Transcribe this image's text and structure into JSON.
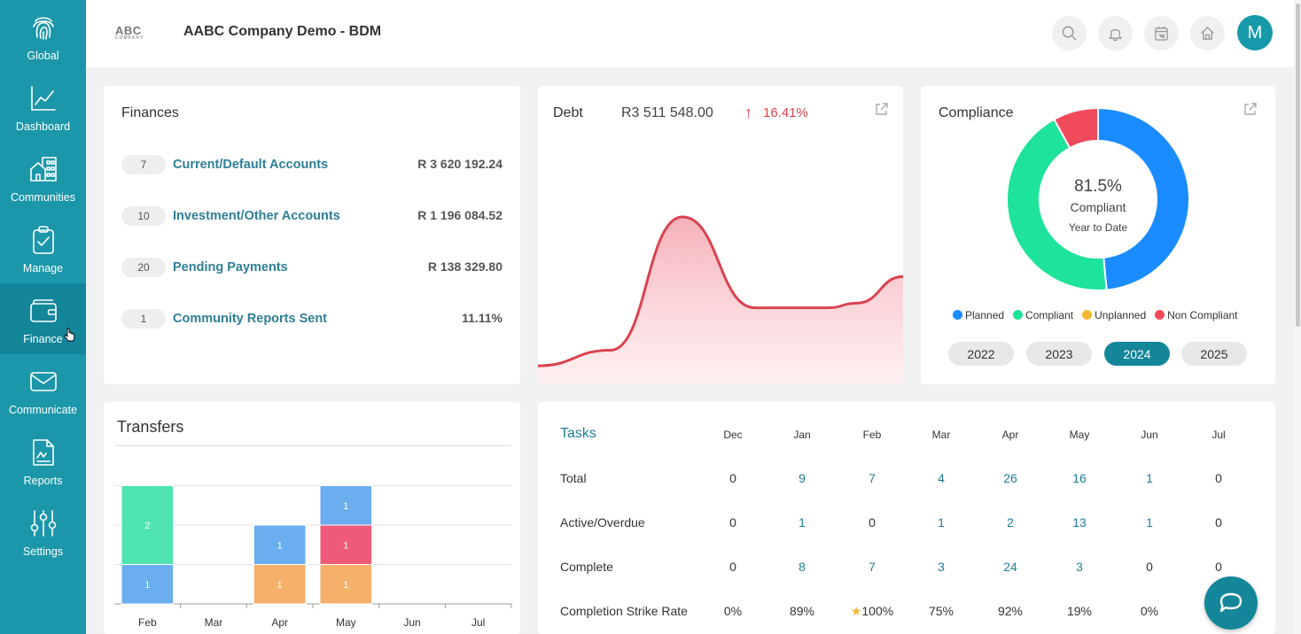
{
  "sidebar": {
    "items": [
      {
        "label": "Global",
        "icon": "fingerprint-icon"
      },
      {
        "label": "Dashboard",
        "icon": "chart-line-icon"
      },
      {
        "label": "Communities",
        "icon": "buildings-icon"
      },
      {
        "label": "Manage",
        "icon": "clipboard-check-icon"
      },
      {
        "label": "Finance",
        "icon": "wallet-icon",
        "active": true
      },
      {
        "label": "Communicate",
        "icon": "envelope-icon"
      },
      {
        "label": "Reports",
        "icon": "report-icon"
      },
      {
        "label": "Settings",
        "icon": "sliders-icon"
      }
    ]
  },
  "header": {
    "logo_text": "ABC",
    "logo_subtext": "COMPANY",
    "title": "AABC Company Demo - BDM",
    "avatar_letter": "M"
  },
  "finances": {
    "title": "Finances",
    "rows": [
      {
        "count": "7",
        "label": "Current/Default Accounts",
        "value": "R 3 620 192.24"
      },
      {
        "count": "10",
        "label": "Investment/Other Accounts",
        "value": "R 1 196 084.52"
      },
      {
        "count": "20",
        "label": "Pending Payments",
        "value": "R 138 329.80"
      },
      {
        "count": "1",
        "label": "Community Reports Sent",
        "value": "11.11%"
      }
    ]
  },
  "debt": {
    "label": "Debt",
    "amount": "R3 511 548.00",
    "arrow": "↑",
    "change": "16.41%"
  },
  "compliance": {
    "title": "Compliance",
    "center_value": "81.5%",
    "center_label": "Compliant",
    "center_sub": "Year to Date",
    "legend": [
      {
        "label": "Planned",
        "color": "#1a8cff"
      },
      {
        "label": "Compliant",
        "color": "#1ee39a"
      },
      {
        "label": "Unplanned",
        "color": "#f5b731"
      },
      {
        "label": "Non Compliant",
        "color": "#f04a5c"
      }
    ],
    "years": [
      "2022",
      "2023",
      "2024",
      "2025"
    ],
    "active_year": "2024"
  },
  "transfers": {
    "title": "Transfers"
  },
  "chart_data": [
    {
      "type": "area",
      "title": "Debt",
      "description_values_relative": true,
      "x": [
        0,
        1,
        2,
        3,
        4,
        5,
        6
      ],
      "values": [
        0.05,
        0.15,
        1.0,
        0.42,
        0.42,
        0.45,
        0.62
      ],
      "color": "#d9434f"
    },
    {
      "type": "pie",
      "title": "Compliance",
      "categories": [
        "Planned",
        "Compliant",
        "Unplanned",
        "Non Compliant"
      ],
      "values": [
        48.5,
        43.5,
        0,
        8.0
      ],
      "colors": [
        "#1a8cff",
        "#1ee39a",
        "#f5b731",
        "#f04a5c"
      ]
    },
    {
      "type": "bar",
      "title": "Transfers",
      "categories": [
        "Feb",
        "Mar",
        "Apr",
        "May",
        "Jun",
        "Jul"
      ],
      "series": [
        {
          "name": "",
          "color": "#6aaef0",
          "values": [
            1,
            0,
            1,
            1,
            0,
            0
          ]
        },
        {
          "name": "",
          "color": "#f5b06a",
          "values": [
            0,
            0,
            1,
            1,
            0,
            0
          ]
        },
        {
          "name": "",
          "color": "#ef5a79",
          "values": [
            0,
            0,
            0,
            1,
            0,
            0
          ]
        },
        {
          "name": "",
          "color": "#4ee3b0",
          "values": [
            2,
            0,
            0,
            0,
            0,
            0
          ]
        }
      ],
      "stack_order": [
        [
          "#6aaef0",
          "#4ee3b0"
        ],
        [],
        [
          "#f5b06a",
          "#6aaef0"
        ],
        [
          "#f5b06a",
          "#ef5a79",
          "#6aaef0"
        ],
        [],
        []
      ],
      "ylim": [
        0,
        3
      ]
    }
  ],
  "tasks": {
    "title": "Tasks",
    "months": [
      "Dec",
      "Jan",
      "Feb",
      "Mar",
      "Apr",
      "May",
      "Jun",
      "Jul"
    ],
    "rows": [
      {
        "label": "Total",
        "values": [
          "0",
          "9",
          "7",
          "4",
          "26",
          "16",
          "1",
          "0"
        ]
      },
      {
        "label": "Active/Overdue",
        "values": [
          "0",
          "1",
          "0",
          "1",
          "2",
          "13",
          "1",
          "0"
        ]
      },
      {
        "label": "Complete",
        "values": [
          "0",
          "8",
          "7",
          "3",
          "24",
          "3",
          "0",
          "0"
        ]
      },
      {
        "label": "Completion Strike Rate",
        "values": [
          "0%",
          "89%",
          "100%",
          "75%",
          "92%",
          "19%",
          "0%",
          ""
        ]
      }
    ],
    "star_icon": "star-icon"
  }
}
